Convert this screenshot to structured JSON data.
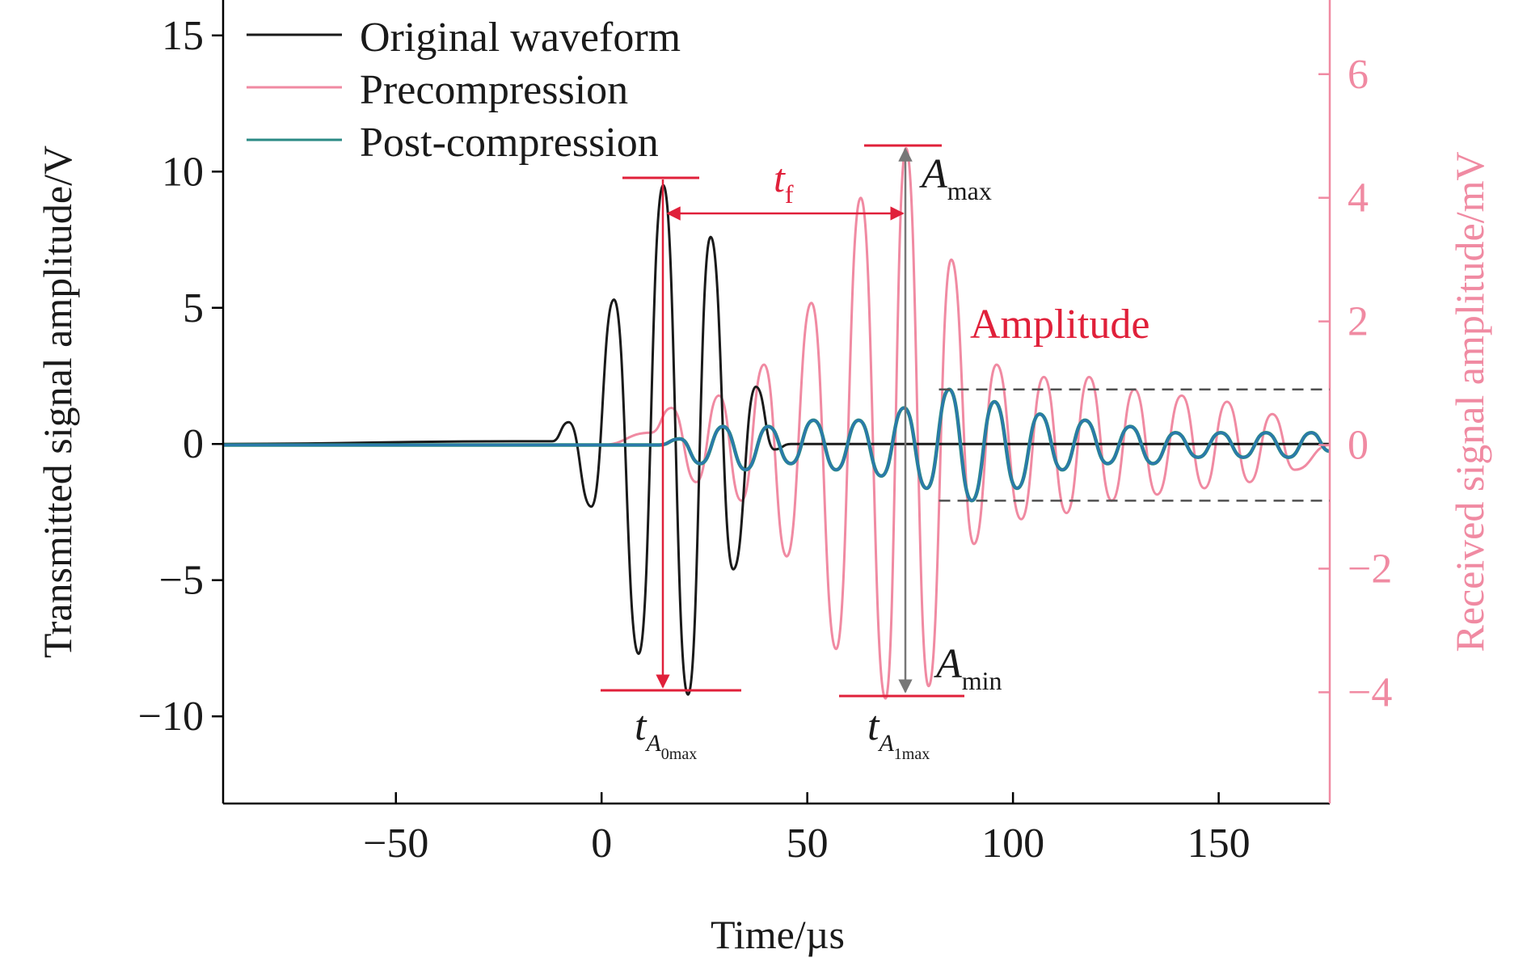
{
  "chart_data": {
    "type": "line",
    "xlabel": "Time/µs",
    "ylabel_left": "Transmitted signal amplitude/V",
    "ylabel_right": "Received signal amplitude/mV",
    "xlim": [
      -92,
      177
    ],
    "ylim_left": [
      -13.2,
      16.3
    ],
    "ylim_right": [
      -5.8,
      7.2
    ],
    "xticks": [
      -50,
      0,
      50,
      100,
      150
    ],
    "yticks_left": [
      -10,
      -5,
      0,
      5,
      10,
      15
    ],
    "yticks_right": [
      -4,
      -2,
      0,
      2,
      4,
      6
    ],
    "grid": false,
    "legend_position": "top-left",
    "colors": {
      "original": "#1a1a1a",
      "precompression": "#f08aa2",
      "postcompression": "#2a8a84",
      "postcompression_overlay": "#2c73b8",
      "annotation": "#e0203a",
      "right_axis": "#f08aa2",
      "dashed": "#505050"
    },
    "series": [
      {
        "name": "Original waveform",
        "axis": "left",
        "key": "original",
        "x": [
          -92,
          -20,
          -12,
          -8,
          -2.5,
          3,
          9,
          15,
          21,
          26.5,
          32,
          37.5,
          42,
          46,
          177
        ],
        "y": [
          0,
          0.1,
          0.1,
          0.8,
          -2.3,
          5.3,
          -7.7,
          9.5,
          -9.2,
          7.6,
          -4.6,
          2.1,
          -0.2,
          0,
          0
        ]
      },
      {
        "name": "Precompression",
        "axis": "right",
        "key": "precompression",
        "x": [
          -92,
          0,
          12,
          17,
          23,
          28.5,
          34,
          39.5,
          45,
          51,
          57,
          63,
          69,
          74,
          79.5,
          85,
          90.5,
          96,
          102,
          107.5,
          113,
          118.5,
          124,
          129.5,
          135,
          141,
          146.5,
          152,
          157.5,
          163,
          168.5,
          177
        ],
        "y": [
          0,
          0,
          0.2,
          0.6,
          -0.6,
          0.8,
          -0.9,
          1.3,
          -1.8,
          2.3,
          -3.3,
          4.0,
          -4.1,
          4.8,
          -3.9,
          3.0,
          -1.6,
          1.3,
          -1.2,
          1.1,
          -1.1,
          1.1,
          -0.9,
          0.9,
          -0.8,
          0.8,
          -0.7,
          0.7,
          -0.6,
          0.5,
          -0.4,
          0
        ]
      },
      {
        "name": "Post-compression",
        "axis": "right",
        "key": "postcompression",
        "x": [
          -92,
          14,
          19,
          24,
          29.5,
          35,
          40.5,
          46,
          51.5,
          57,
          62.5,
          68,
          73.5,
          79,
          84.5,
          90,
          95.5,
          101,
          106.5,
          112,
          117.5,
          123,
          128.5,
          134,
          139.5,
          145,
          150.5,
          156,
          161.5,
          167,
          172.5,
          177
        ],
        "y": [
          0,
          0,
          0.1,
          -0.3,
          0.3,
          -0.4,
          0.3,
          -0.3,
          0.4,
          -0.4,
          0.4,
          -0.5,
          0.6,
          -0.7,
          0.9,
          -0.9,
          0.7,
          -0.7,
          0.5,
          -0.4,
          0.4,
          -0.3,
          0.3,
          -0.3,
          0.2,
          -0.2,
          0.2,
          -0.2,
          0.2,
          -0.2,
          0.2,
          -0.1
        ]
      }
    ],
    "annotations": {
      "tf": "t",
      "tf_sub": "f",
      "amax": "A",
      "amax_sub": "max",
      "amin": "A",
      "amin_sub": "min",
      "ta0": "t",
      "ta0_sub": "A",
      "ta0_subsub": "0max",
      "ta1": "t",
      "ta1_sub": "A",
      "ta1_subsub": "1max",
      "amplitude": "Amplitude",
      "dashed_levels_right": [
        0.9,
        -0.9
      ]
    }
  }
}
